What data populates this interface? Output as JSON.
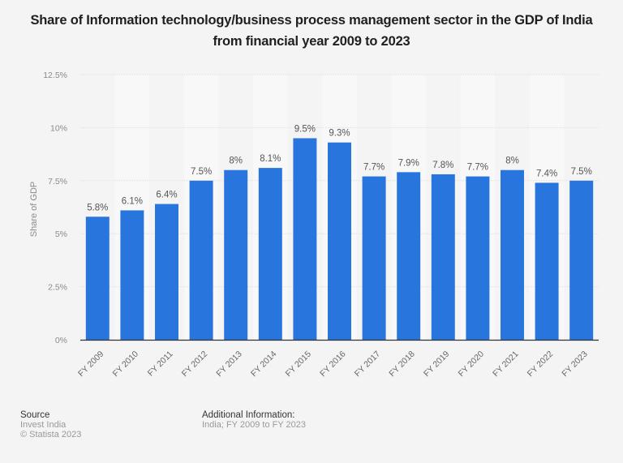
{
  "chart_data": {
    "type": "bar",
    "title": "Share of Information technology/business process management sector in the GDP of India from financial year 2009 to 2023",
    "xlabel": "",
    "ylabel": "Share of GDP",
    "ylim": [
      0,
      12.5
    ],
    "yticks": [
      0,
      2.5,
      5,
      7.5,
      10,
      12.5
    ],
    "ytick_labels": [
      "0%",
      "2.5%",
      "5%",
      "7.5%",
      "10%",
      "12.5%"
    ],
    "grid": true,
    "legend": "none",
    "bar_color": "#2876dd",
    "categories": [
      "FY 2009",
      "FY 2010",
      "FY 2011",
      "FY 2012",
      "FY 2013",
      "FY 2014",
      "FY 2015",
      "FY 2016",
      "FY 2017",
      "FY 2018",
      "FY 2019",
      "FY 2020",
      "FY 2021",
      "FY 2022",
      "FY 2023"
    ],
    "values": [
      5.8,
      6.1,
      6.4,
      7.5,
      8,
      8.1,
      9.5,
      9.3,
      7.7,
      7.9,
      7.8,
      7.7,
      8,
      7.4,
      7.5
    ],
    "value_labels": [
      "5.8%",
      "6.1%",
      "6.4%",
      "7.5%",
      "8%",
      "8.1%",
      "9.5%",
      "9.3%",
      "7.7%",
      "7.9%",
      "7.8%",
      "7.7%",
      "8%",
      "7.4%",
      "7.5%"
    ]
  },
  "footer": {
    "source_heading": "Source",
    "source_lines": [
      "Invest India",
      "© Statista 2023"
    ],
    "additional_heading": "Additional Information:",
    "additional_text": "India; FY 2009 to FY 2023"
  }
}
